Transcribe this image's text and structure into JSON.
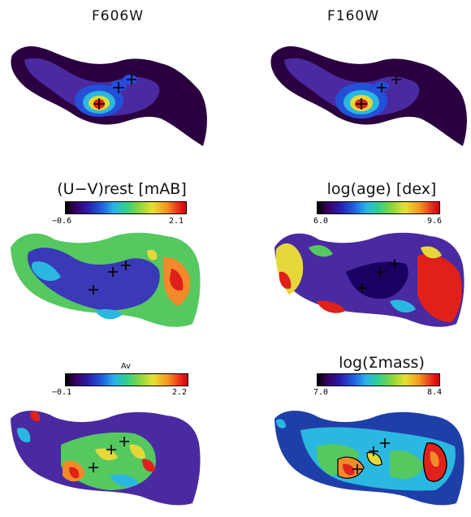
{
  "panels": {
    "f606w": {
      "title": "F606W"
    },
    "f160w": {
      "title": "F160W"
    },
    "uv": {
      "title": "(U−V)rest [mAB]",
      "min": "−0.6",
      "max": "2.1"
    },
    "age": {
      "title": "log(age) [dex]",
      "min": "6.0",
      "max": "9.6"
    },
    "av": {
      "title": "Av",
      "min": "−0.1",
      "max": "2.2"
    },
    "mass": {
      "title": "log(Σmass)",
      "min": "7.0",
      "max": "8.4"
    }
  },
  "colors": {
    "dark": "#2a0040",
    "purple": "#4a2aa0",
    "blue": "#2450d8",
    "cyan": "#2ab8e0",
    "green": "#55c860",
    "yellow": "#e6d83a",
    "orange": "#f08a2a",
    "red": "#e0201a"
  }
}
